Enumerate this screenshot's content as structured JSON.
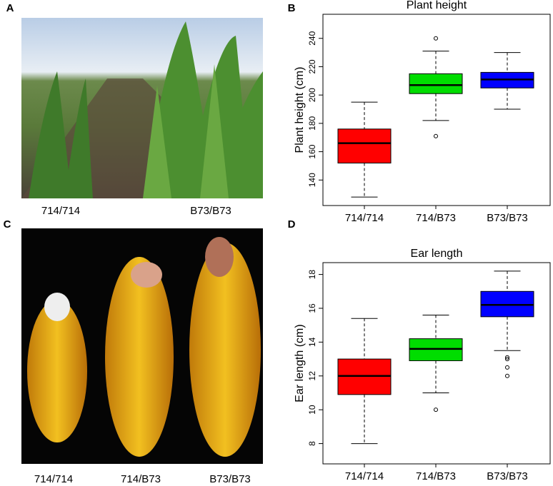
{
  "panel_labels": [
    "A",
    "B",
    "C",
    "D"
  ],
  "photo_a_captions": [
    "714/714",
    "B73/B73"
  ],
  "photo_c_captions": [
    "714/714",
    "714/B73",
    "B73/B73"
  ],
  "chart_data": [
    {
      "type": "box",
      "title": "Plant height",
      "y_label": "Plant height (cm)",
      "categories": [
        "714/714",
        "714/B73",
        "B73/B73"
      ],
      "colors": [
        "#ff0000",
        "#00dd00",
        "#0000ff"
      ],
      "boxes": [
        {
          "low": 128,
          "q1": 152,
          "median": 166,
          "q3": 176,
          "high": 195,
          "outliers": []
        },
        {
          "low": 182,
          "q1": 201,
          "median": 207,
          "q3": 215,
          "high": 231,
          "outliers": [
            240,
            171
          ]
        },
        {
          "low": 190,
          "q1": 205,
          "median": 211,
          "q3": 216,
          "high": 230,
          "outliers": []
        }
      ],
      "ylim": [
        122,
        257
      ],
      "yticks": [
        140,
        160,
        180,
        200,
        220,
        240
      ]
    },
    {
      "type": "box",
      "title": "Ear length",
      "y_label": "Ear length  (cm)",
      "categories": [
        "714/714",
        "714/B73",
        "B73/B73"
      ],
      "colors": [
        "#ff0000",
        "#00dd00",
        "#0000ff"
      ],
      "boxes": [
        {
          "low": 8,
          "q1": 10.9,
          "median": 12,
          "q3": 13,
          "high": 15.4,
          "outliers": []
        },
        {
          "low": 11,
          "q1": 12.9,
          "median": 13.6,
          "q3": 14.2,
          "high": 15.6,
          "outliers": [
            10
          ]
        },
        {
          "low": 13.5,
          "q1": 15.5,
          "median": 16.2,
          "q3": 17,
          "high": 18.2,
          "outliers": [
            13.1,
            13,
            12.5,
            12
          ]
        }
      ],
      "ylim": [
        6.8,
        18.7
      ],
      "yticks": [
        8,
        10,
        12,
        14,
        16,
        18
      ]
    }
  ]
}
